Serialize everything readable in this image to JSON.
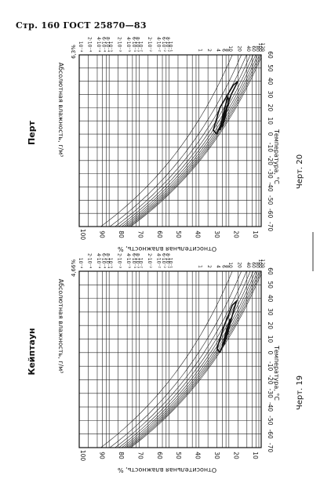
{
  "header": {
    "text": "Стр. 160 ГОСТ 25870—83"
  },
  "charts": [
    {
      "id": "perth",
      "station": "Перт",
      "figure_label": "Черт. 20",
      "ymax_label": "6,3%",
      "ylabel": "Абсолютная влажность, г/м³",
      "xlabel": "Температура, °С",
      "rh_label": "Относительная влажность, %"
    },
    {
      "id": "keetown",
      "station": "Кейптаун",
      "figure_label": "Черт. 19",
      "ymax_label": "4,66%",
      "ylabel": "Абсолютная влажность, г/м³",
      "xlabel": "Температура, °С",
      "rh_label": "Относительная влажность, %"
    }
  ],
  "chart_data": [
    {
      "type": "line",
      "title": "Перт",
      "xlabel": "Температура, °С",
      "ylabel": "Абсолютная влажность, г/м³",
      "x_ticks": [
        "-70",
        "-60",
        "-50",
        "-40",
        "-30",
        "-20",
        "-10",
        "0",
        "10",
        "20",
        "30",
        "40",
        "50",
        "60"
      ],
      "y_ticks": [
        "120",
        "100",
        "80",
        "60",
        "40",
        "20",
        "10",
        "8",
        "6",
        "4",
        "2",
        "1",
        "10⁻¹",
        "8·10⁻²",
        "6·10⁻²",
        "4·10⁻²",
        "2·10⁻²",
        "10⁻²",
        "8·10⁻³",
        "6·10⁻³",
        "4·10⁻³",
        "2·10⁻³",
        "10⁻³",
        "8·10⁻⁴",
        "6·10⁻⁴",
        "4·10⁻⁴",
        "2·10⁻⁴",
        "10⁻⁴"
      ],
      "y_scale": "log",
      "rh_ticks": [
        "100",
        "90",
        "80",
        "70",
        "60",
        "50",
        "40",
        "30",
        "20",
        "10"
      ],
      "rh_label": "Относительная влажность, %",
      "grid": true,
      "series": [
        {
          "values": [
            {
              "t": 0,
              "a": 4
            },
            {
              "t": 10,
              "a": 6
            },
            {
              "t": 30,
              "a": 12
            },
            {
              "t": 40,
              "a": 20
            },
            {
              "t": 37,
              "a": 14
            },
            {
              "t": 20,
              "a": 5
            },
            {
              "t": 3,
              "a": 3
            },
            {
              "t": 0,
              "a": 4
            }
          ]
        },
        {
          "values": [
            {
              "t": 3,
              "a": 5
            },
            {
              "t": 12,
              "a": 7
            },
            {
              "t": 25,
              "a": 10
            },
            {
              "t": 28,
              "a": 9
            },
            {
              "t": 12,
              "a": 6
            },
            {
              "t": 3,
              "a": 5
            }
          ]
        },
        {
          "values": [
            {
              "t": 5,
              "a": 6
            },
            {
              "t": 15,
              "a": 8
            },
            {
              "t": 22,
              "a": 9
            },
            {
              "t": 15,
              "a": 7
            },
            {
              "t": 5,
              "a": 6
            }
          ]
        }
      ]
    },
    {
      "type": "line",
      "title": "Кейптаун",
      "xlabel": "Температура, °С",
      "ylabel": "Абсолютная влажность, г/м³",
      "x_ticks": [
        "-70",
        "-60",
        "-50",
        "-40",
        "-30",
        "-20",
        "-10",
        "0",
        "10",
        "20",
        "30",
        "40",
        "50",
        "60"
      ],
      "y_ticks": [
        "120",
        "100",
        "80",
        "60",
        "40",
        "20",
        "10",
        "8",
        "6",
        "4",
        "2",
        "1",
        "10⁻¹",
        "8·10⁻²",
        "6·10⁻²",
        "4·10⁻²",
        "2·10⁻²",
        "10⁻²",
        "8·10⁻³",
        "6·10⁻³",
        "4·10⁻³",
        "2·10⁻³",
        "10⁻³",
        "8·10⁻⁴",
        "6·10⁻⁴",
        "4·10⁻⁴",
        "2·10⁻⁴",
        "10⁻⁴"
      ],
      "y_scale": "log",
      "rh_ticks": [
        "100",
        "90",
        "80",
        "70",
        "60",
        "50",
        "40",
        "30",
        "20",
        "10"
      ],
      "rh_label": "Относительная влажность, %",
      "grid": true,
      "series": [
        {
          "values": [
            {
              "t": 0,
              "a": 5
            },
            {
              "t": 10,
              "a": 8
            },
            {
              "t": 30,
              "a": 14
            },
            {
              "t": 38,
              "a": 18
            },
            {
              "t": 35,
              "a": 13
            },
            {
              "t": 20,
              "a": 7
            },
            {
              "t": 3,
              "a": 4
            },
            {
              "t": 0,
              "a": 5
            }
          ]
        },
        {
          "values": [
            {
              "t": 4,
              "a": 6
            },
            {
              "t": 15,
              "a": 9
            },
            {
              "t": 25,
              "a": 11
            },
            {
              "t": 15,
              "a": 8
            },
            {
              "t": 4,
              "a": 6
            }
          ]
        },
        {
          "values": [
            {
              "t": 6,
              "a": 7
            },
            {
              "t": 12,
              "a": 8
            },
            {
              "t": 18,
              "a": 9
            },
            {
              "t": 12,
              "a": 7.5
            },
            {
              "t": 6,
              "a": 7
            }
          ]
        }
      ]
    }
  ]
}
